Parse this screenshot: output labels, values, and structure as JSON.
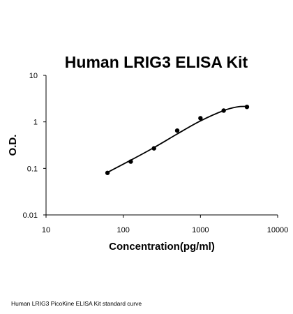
{
  "caption": "Human LRIG3 PicoKine ELISA Kit standard curve",
  "chart_data": {
    "type": "scatter",
    "title": "Human LRIG3 ELISA Kit",
    "xlabel": "Concentration(pg/ml)",
    "ylabel": "O.D.",
    "xscale": "log",
    "yscale": "log",
    "xlim": [
      10,
      10000
    ],
    "ylim": [
      0.01,
      10
    ],
    "x_ticks": [
      "10",
      "100",
      "1000",
      "10000"
    ],
    "y_ticks": [
      "0.01",
      "0.1",
      "1",
      "10"
    ],
    "grid": false,
    "legend": "none",
    "series": [
      {
        "points": [
          {
            "x": 62.5,
            "y": 0.08
          },
          {
            "x": 125,
            "y": 0.14
          },
          {
            "x": 250,
            "y": 0.27
          },
          {
            "x": 500,
            "y": 0.65
          },
          {
            "x": 1000,
            "y": 1.2
          },
          {
            "x": 2000,
            "y": 1.75
          },
          {
            "x": 4000,
            "y": 2.1
          }
        ],
        "fit_curve": [
          {
            "x": 62.5,
            "y": 0.082
          },
          {
            "x": 125,
            "y": 0.15
          },
          {
            "x": 250,
            "y": 0.28
          },
          {
            "x": 500,
            "y": 0.55
          },
          {
            "x": 1000,
            "y": 1.05
          },
          {
            "x": 2000,
            "y": 1.75
          },
          {
            "x": 3000,
            "y": 2.1
          },
          {
            "x": 4000,
            "y": 2.15
          }
        ],
        "color": "#000000"
      }
    ]
  }
}
